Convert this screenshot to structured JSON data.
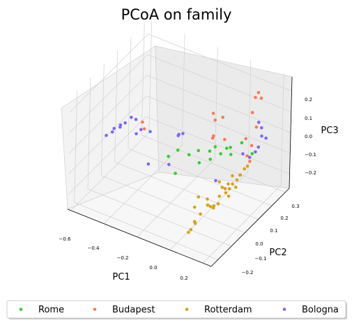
{
  "chart_data": {
    "type": "scatter",
    "projection": "3d",
    "title": "PCoA on family",
    "xlabel": "PC1",
    "ylabel": "PC2",
    "zlabel": "PC3",
    "xticks": [
      "−0.6",
      "−0.4",
      "−0.2",
      "0.0",
      "0.2"
    ],
    "yticks": [
      "−0.2",
      "−0.1",
      "0.0",
      "0.1",
      "0.2",
      "0.3"
    ],
    "zticks": [
      "−0.2",
      "−0.1",
      "0.0",
      "0.1",
      "0.2"
    ],
    "xlim": [
      -0.6,
      0.25
    ],
    "ylim": [
      -0.25,
      0.3
    ],
    "zlim": [
      -0.25,
      0.25
    ],
    "grid": true,
    "legend_placement": "bottom",
    "series": [
      {
        "name": "Rome",
        "color": "#33cc33",
        "points": [
          [
            -0.22,
            0.0,
            -0.05
          ],
          [
            -0.18,
            0.02,
            -0.02
          ],
          [
            -0.12,
            0.03,
            -0.03
          ],
          [
            -0.08,
            0.05,
            -0.01
          ],
          [
            -0.05,
            0.02,
            -0.04
          ],
          [
            -0.02,
            0.06,
            0.0
          ],
          [
            0.0,
            0.04,
            -0.02
          ],
          [
            0.03,
            0.08,
            -0.01
          ],
          [
            0.05,
            0.1,
            0.01
          ],
          [
            0.06,
            0.12,
            -0.03
          ],
          [
            0.1,
            0.15,
            0.02
          ],
          [
            0.14,
            0.18,
            -0.04
          ],
          [
            -0.16,
            -0.02,
            -0.1
          ],
          [
            0.08,
            0.09,
            0.03
          ],
          [
            0.02,
            0.05,
            0.04
          ]
        ]
      },
      {
        "name": "Budapest",
        "color": "#f47a5a",
        "points": [
          [
            -0.42,
            0.05,
            0.02
          ],
          [
            -0.4,
            0.04,
            0.0
          ],
          [
            -0.02,
            0.08,
            0.17
          ],
          [
            0.0,
            0.07,
            0.15
          ],
          [
            0.03,
            0.09,
            0.16
          ],
          [
            0.0,
            0.06,
            0.08
          ],
          [
            -0.02,
            0.08,
            0.05
          ],
          [
            0.02,
            0.12,
            0.03
          ],
          [
            0.12,
            0.22,
            0.2
          ],
          [
            0.13,
            0.23,
            0.22
          ],
          [
            0.14,
            0.24,
            0.19
          ],
          [
            0.12,
            0.2,
            0.14
          ],
          [
            0.13,
            0.22,
            0.06
          ],
          [
            0.1,
            0.18,
            0.02
          ],
          [
            0.12,
            0.2,
            -0.02
          ],
          [
            0.11,
            0.18,
            -0.06
          ],
          [
            0.12,
            0.19,
            -0.09
          ]
        ]
      },
      {
        "name": "Rotterdam",
        "color": "#d6a11f",
        "points": [
          [
            0.05,
            0.05,
            -0.12
          ],
          [
            0.06,
            0.06,
            -0.15
          ],
          [
            0.07,
            0.07,
            -0.16
          ],
          [
            0.08,
            0.08,
            -0.14
          ],
          [
            0.08,
            0.09,
            -0.17
          ],
          [
            0.09,
            0.1,
            -0.15
          ],
          [
            0.1,
            0.12,
            -0.14
          ],
          [
            0.11,
            0.13,
            -0.12
          ],
          [
            0.12,
            0.15,
            -0.1
          ],
          [
            0.13,
            0.16,
            -0.09
          ],
          [
            0.02,
            0.0,
            -0.18
          ],
          [
            0.03,
            -0.01,
            -0.2
          ],
          [
            0.04,
            0.0,
            -0.21
          ],
          [
            0.05,
            0.01,
            -0.22
          ],
          [
            0.06,
            0.0,
            -0.2
          ],
          [
            0.04,
            -0.02,
            -0.19
          ],
          [
            0.02,
            -0.05,
            -0.22
          ],
          [
            0.01,
            -0.08,
            -0.24
          ],
          [
            0.03,
            -0.1,
            -0.23
          ],
          [
            0.02,
            -0.12,
            -0.25
          ],
          [
            0.03,
            -0.15,
            -0.24
          ],
          [
            0.06,
            0.04,
            -0.18
          ],
          [
            0.07,
            0.02,
            -0.2
          ],
          [
            -0.01,
            -0.03,
            -0.16
          ],
          [
            0.0,
            -0.07,
            -0.18
          ],
          [
            0.09,
            0.05,
            -0.16
          ],
          [
            0.1,
            0.06,
            -0.18
          ],
          [
            0.11,
            0.1,
            -0.16
          ],
          [
            0.08,
            0.11,
            -0.12
          ],
          [
            0.12,
            0.12,
            -0.11
          ]
        ]
      },
      {
        "name": "Bologna",
        "color": "#7b68ee",
        "points": [
          [
            -0.58,
            -0.02,
            -0.05
          ],
          [
            -0.56,
            0.0,
            -0.04
          ],
          [
            -0.55,
            0.0,
            -0.02
          ],
          [
            -0.53,
            0.02,
            -0.02
          ],
          [
            -0.52,
            0.01,
            0.0
          ],
          [
            -0.5,
            0.02,
            0.01
          ],
          [
            -0.48,
            0.04,
            0.03
          ],
          [
            -0.46,
            0.05,
            0.02
          ],
          [
            -0.44,
            0.03,
            -0.03
          ],
          [
            -0.42,
            0.04,
            -0.01
          ],
          [
            -0.38,
            0.06,
            -0.02
          ],
          [
            -0.2,
            -0.02,
            -0.07
          ],
          [
            -0.18,
            0.02,
            0.05
          ],
          [
            -0.16,
            0.03,
            0.06
          ],
          [
            -0.2,
            0.05,
            0.03
          ],
          [
            0.12,
            0.25,
            0.06
          ],
          [
            0.13,
            0.26,
            0.03
          ],
          [
            0.14,
            0.25,
            0.0
          ],
          [
            0.15,
            0.27,
            -0.02
          ],
          [
            0.13,
            0.24,
            -0.05
          ],
          [
            0.12,
            0.23,
            -0.07
          ],
          [
            0.11,
            0.2,
            -0.08
          ],
          [
            0.02,
            0.06,
            -0.13
          ],
          [
            0.1,
            0.16,
            -0.04
          ],
          [
            -0.3,
            -0.05,
            -0.08
          ]
        ]
      }
    ]
  }
}
